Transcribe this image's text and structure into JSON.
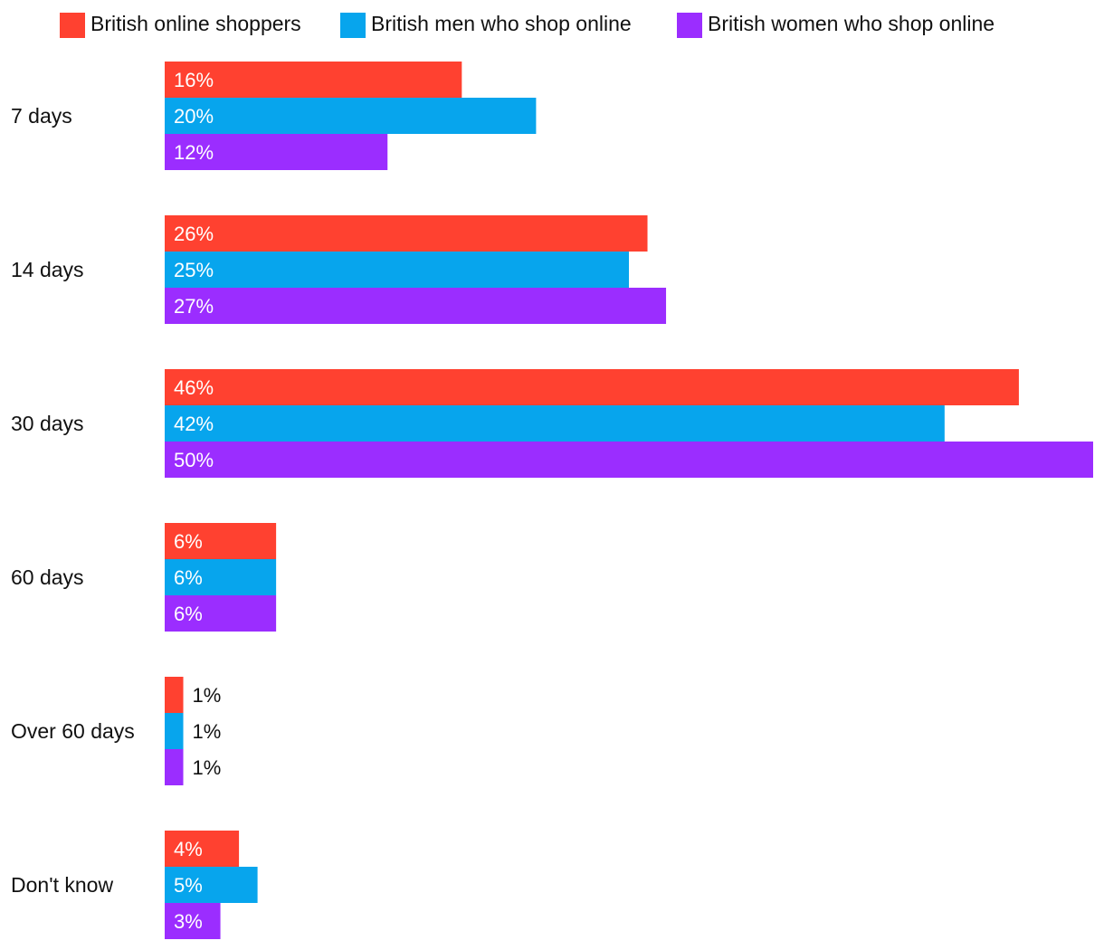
{
  "chart_data": {
    "type": "bar",
    "orientation": "horizontal",
    "title": "",
    "xlabel": "",
    "ylabel": "",
    "xlim": [
      0,
      50
    ],
    "grid": false,
    "legend_position": "top",
    "categories": [
      "7 days",
      "14 days",
      "30 days",
      "60 days",
      "Over 60 days",
      "Don't know"
    ],
    "series": [
      {
        "name": "British online shoppers",
        "color": "#ff4130",
        "values": [
          16,
          26,
          46,
          6,
          1,
          4
        ],
        "labels": [
          "16%",
          "26%",
          "46%",
          "6%",
          "1%",
          "4%"
        ]
      },
      {
        "name": "British men who shop online",
        "color": "#07a5ed",
        "values": [
          20,
          25,
          42,
          6,
          1,
          5
        ],
        "labels": [
          "20%",
          "25%",
          "42%",
          "6%",
          "1%",
          "5%"
        ]
      },
      {
        "name": "British women who shop online",
        "color": "#9b2dff",
        "values": [
          12,
          27,
          50,
          6,
          1,
          3
        ],
        "labels": [
          "12%",
          "27%",
          "50%",
          "6%",
          "1%",
          "3%"
        ]
      }
    ]
  }
}
